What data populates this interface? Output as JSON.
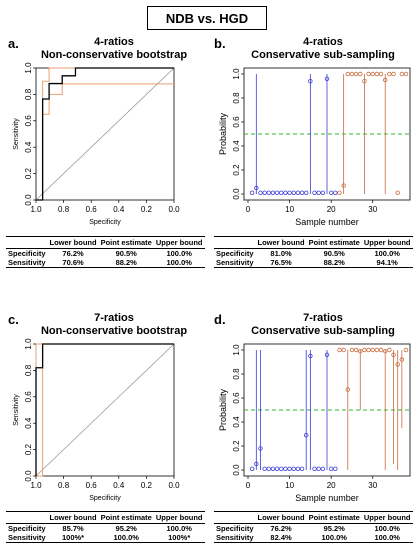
{
  "header_title": "NDB vs. HGD",
  "panels": [
    {
      "letter": "a.",
      "title1": "4-ratios",
      "title2": "Non-conservative bootstrap"
    },
    {
      "letter": "b.",
      "title1": "4-ratios",
      "title2": "Conservative sub-sampling"
    },
    {
      "letter": "c.",
      "title1": "7-ratios",
      "title2": "Non-conservative bootstrap"
    },
    {
      "letter": "d.",
      "title1": "7-ratios",
      "title2": "Conservative sub-sampling"
    }
  ],
  "tables": [
    {
      "headers": [
        "",
        "Lower bound",
        "Point estimate",
        "Upper bound"
      ],
      "rows": [
        [
          "Specificity",
          "76.2%",
          "90.5%",
          "100.0%"
        ],
        [
          "Sensitivity",
          "70.6%",
          "88.2%",
          "100.0%"
        ]
      ]
    },
    {
      "headers": [
        "",
        "Lower bound",
        "Point estimate",
        "Upper bound"
      ],
      "rows": [
        [
          "Specificity",
          "81.0%",
          "90.5%",
          "100.0%"
        ],
        [
          "Sensitivity",
          "76.5%",
          "88.2%",
          "94.1%"
        ]
      ]
    },
    {
      "headers": [
        "",
        "Lower bound",
        "Point estimate",
        "Upper bound"
      ],
      "rows": [
        [
          "Specificity",
          "85.7%",
          "95.2%",
          "100.0%"
        ],
        [
          "Sensitivity",
          "100%*",
          "100.0%",
          "100%*"
        ]
      ]
    },
    {
      "headers": [
        "",
        "Lower bound",
        "Point estimate",
        "Upper bound"
      ],
      "rows": [
        [
          "Specificity",
          "76.2%",
          "95.2%",
          "100.0%"
        ],
        [
          "Sensitivity",
          "82.4%",
          "100.0%",
          "100.0%"
        ]
      ]
    }
  ],
  "colors": {
    "ndb": "#3b3bd6",
    "hgd": "#c86a3c",
    "threshold": "#33b833",
    "roc": "#000000",
    "ci_band": "#e8a070",
    "diag": "#999999"
  },
  "chart_data": [
    {
      "type": "line",
      "xlabel": "Specificity",
      "ylabel": "Sensitivity",
      "xlim": [
        1.0,
        0.0
      ],
      "ylim": [
        0.0,
        1.0
      ],
      "x_ticks": [
        "1.0",
        "0.8",
        "0.6",
        "0.4",
        "0.2",
        "0.0"
      ],
      "y_ticks": [
        "0.0",
        "0.2",
        "0.4",
        "0.6",
        "0.8",
        "1.0"
      ],
      "roc": {
        "spec": [
          1.0,
          0.952,
          0.952,
          0.905,
          0.905,
          0.81,
          0.81,
          0.714,
          0.714,
          0.0
        ],
        "sens": [
          0.0,
          0.0,
          0.765,
          0.765,
          0.882,
          0.882,
          0.941,
          0.941,
          1.0,
          1.0
        ]
      },
      "ci_lower": {
        "spec": [
          1.0,
          0.952,
          0.952,
          0.905,
          0.905,
          0.81,
          0.81,
          0.0
        ],
        "sens": [
          0.0,
          0.0,
          0.65,
          0.65,
          0.8,
          0.8,
          0.88,
          0.88
        ]
      },
      "ci_upper": {
        "spec": [
          1.0,
          0.952,
          0.952,
          0.905,
          0.905,
          0.0
        ],
        "sens": [
          0.0,
          0.0,
          0.9,
          0.9,
          1.0,
          1.0
        ]
      }
    },
    {
      "type": "scatter",
      "xlabel": "Sample number",
      "ylabel": "Probability",
      "xlim": [
        0,
        38
      ],
      "ylim": [
        0.0,
        1.0
      ],
      "x_ticks": [
        "0",
        "10",
        "20",
        "30"
      ],
      "y_ticks": [
        "0.0",
        "0.2",
        "0.4",
        "0.6",
        "0.8",
        "1.0"
      ],
      "threshold": 0.5,
      "ndb_points": [
        [
          1,
          0.01
        ],
        [
          2,
          0.05
        ],
        [
          3,
          0.01
        ],
        [
          4,
          0.01
        ],
        [
          5,
          0.01
        ],
        [
          6,
          0.01
        ],
        [
          7,
          0.01
        ],
        [
          8,
          0.01
        ],
        [
          9,
          0.01
        ],
        [
          10,
          0.01
        ],
        [
          11,
          0.01
        ],
        [
          12,
          0.01
        ],
        [
          13,
          0.01
        ],
        [
          14,
          0.01
        ],
        [
          15,
          0.94
        ],
        [
          16,
          0.01
        ],
        [
          17,
          0.01
        ],
        [
          18,
          0.01
        ],
        [
          19,
          0.96
        ],
        [
          20,
          0.01
        ],
        [
          21,
          0.01
        ]
      ],
      "ndb_ci": [
        [
          2,
          0.0,
          1.0
        ],
        [
          15,
          0.0,
          1.0
        ],
        [
          19,
          0.0,
          1.0
        ]
      ],
      "hgd_points": [
        [
          22,
          0.01
        ],
        [
          23,
          0.07
        ],
        [
          24,
          1.0
        ],
        [
          25,
          1.0
        ],
        [
          26,
          1.0
        ],
        [
          27,
          1.0
        ],
        [
          28,
          0.94
        ],
        [
          29,
          1.0
        ],
        [
          30,
          1.0
        ],
        [
          31,
          1.0
        ],
        [
          32,
          1.0
        ],
        [
          33,
          0.95
        ],
        [
          34,
          1.0
        ],
        [
          35,
          1.0
        ],
        [
          36,
          0.01
        ],
        [
          37,
          1.0
        ],
        [
          38,
          1.0
        ]
      ],
      "hgd_ci": [
        [
          23,
          0.0,
          1.0
        ],
        [
          28,
          0.0,
          1.0
        ],
        [
          33,
          0.0,
          1.0
        ]
      ]
    },
    {
      "type": "line",
      "xlabel": "Specificity",
      "ylabel": "Sensitivity",
      "xlim": [
        1.0,
        0.0
      ],
      "ylim": [
        0.0,
        1.0
      ],
      "x_ticks": [
        "1.0",
        "0.8",
        "0.6",
        "0.4",
        "0.2",
        "0.0"
      ],
      "y_ticks": [
        "0.0",
        "0.2",
        "0.4",
        "0.6",
        "0.8",
        "1.0"
      ],
      "roc": {
        "spec": [
          1.0,
          1.0,
          0.952,
          0.952,
          0.0
        ],
        "sens": [
          0.0,
          0.82,
          0.82,
          1.0,
          1.0
        ]
      },
      "ci_lower": {
        "spec": [
          1.0,
          0.952,
          0.952,
          0.0
        ],
        "sens": [
          0.0,
          0.0,
          1.0,
          1.0
        ]
      },
      "ci_upper": {
        "spec": [
          1.0,
          1.0,
          0.0
        ],
        "sens": [
          0.0,
          1.0,
          1.0
        ]
      }
    },
    {
      "type": "scatter",
      "xlabel": "Sample number",
      "ylabel": "Probability",
      "xlim": [
        0,
        38
      ],
      "ylim": [
        0.0,
        1.0
      ],
      "x_ticks": [
        "0",
        "10",
        "20",
        "30"
      ],
      "y_ticks": [
        "0.0",
        "0.2",
        "0.4",
        "0.6",
        "0.8",
        "1.0"
      ],
      "threshold": 0.5,
      "ndb_points": [
        [
          1,
          0.01
        ],
        [
          2,
          0.05
        ],
        [
          3,
          0.18
        ],
        [
          4,
          0.01
        ],
        [
          5,
          0.01
        ],
        [
          6,
          0.01
        ],
        [
          7,
          0.01
        ],
        [
          8,
          0.01
        ],
        [
          9,
          0.01
        ],
        [
          10,
          0.01
        ],
        [
          11,
          0.01
        ],
        [
          12,
          0.01
        ],
        [
          13,
          0.01
        ],
        [
          14,
          0.29
        ],
        [
          15,
          0.95
        ],
        [
          16,
          0.01
        ],
        [
          17,
          0.01
        ],
        [
          18,
          0.01
        ],
        [
          19,
          0.96
        ],
        [
          20,
          0.01
        ],
        [
          21,
          0.01
        ]
      ],
      "ndb_ci": [
        [
          2,
          0.0,
          1.0
        ],
        [
          3,
          0.0,
          1.0
        ],
        [
          14,
          0.0,
          1.0
        ],
        [
          15,
          0.0,
          1.0
        ],
        [
          19,
          0.0,
          1.0
        ]
      ],
      "hgd_points": [
        [
          22,
          1.0
        ],
        [
          23,
          1.0
        ],
        [
          24,
          0.67
        ],
        [
          25,
          1.0
        ],
        [
          26,
          1.0
        ],
        [
          27,
          0.99
        ],
        [
          28,
          1.0
        ],
        [
          29,
          1.0
        ],
        [
          30,
          1.0
        ],
        [
          31,
          1.0
        ],
        [
          32,
          1.0
        ],
        [
          33,
          0.99
        ],
        [
          34,
          1.0
        ],
        [
          35,
          0.96
        ],
        [
          36,
          0.88
        ],
        [
          37,
          0.92
        ],
        [
          38,
          1.0
        ]
      ],
      "hgd_ci": [
        [
          24,
          0.0,
          1.0
        ],
        [
          27,
          0.5,
          1.0
        ],
        [
          33,
          0.0,
          1.0
        ],
        [
          35,
          0.05,
          1.0
        ],
        [
          36,
          0.0,
          1.0
        ],
        [
          37,
          0.35,
          1.0
        ]
      ]
    }
  ]
}
